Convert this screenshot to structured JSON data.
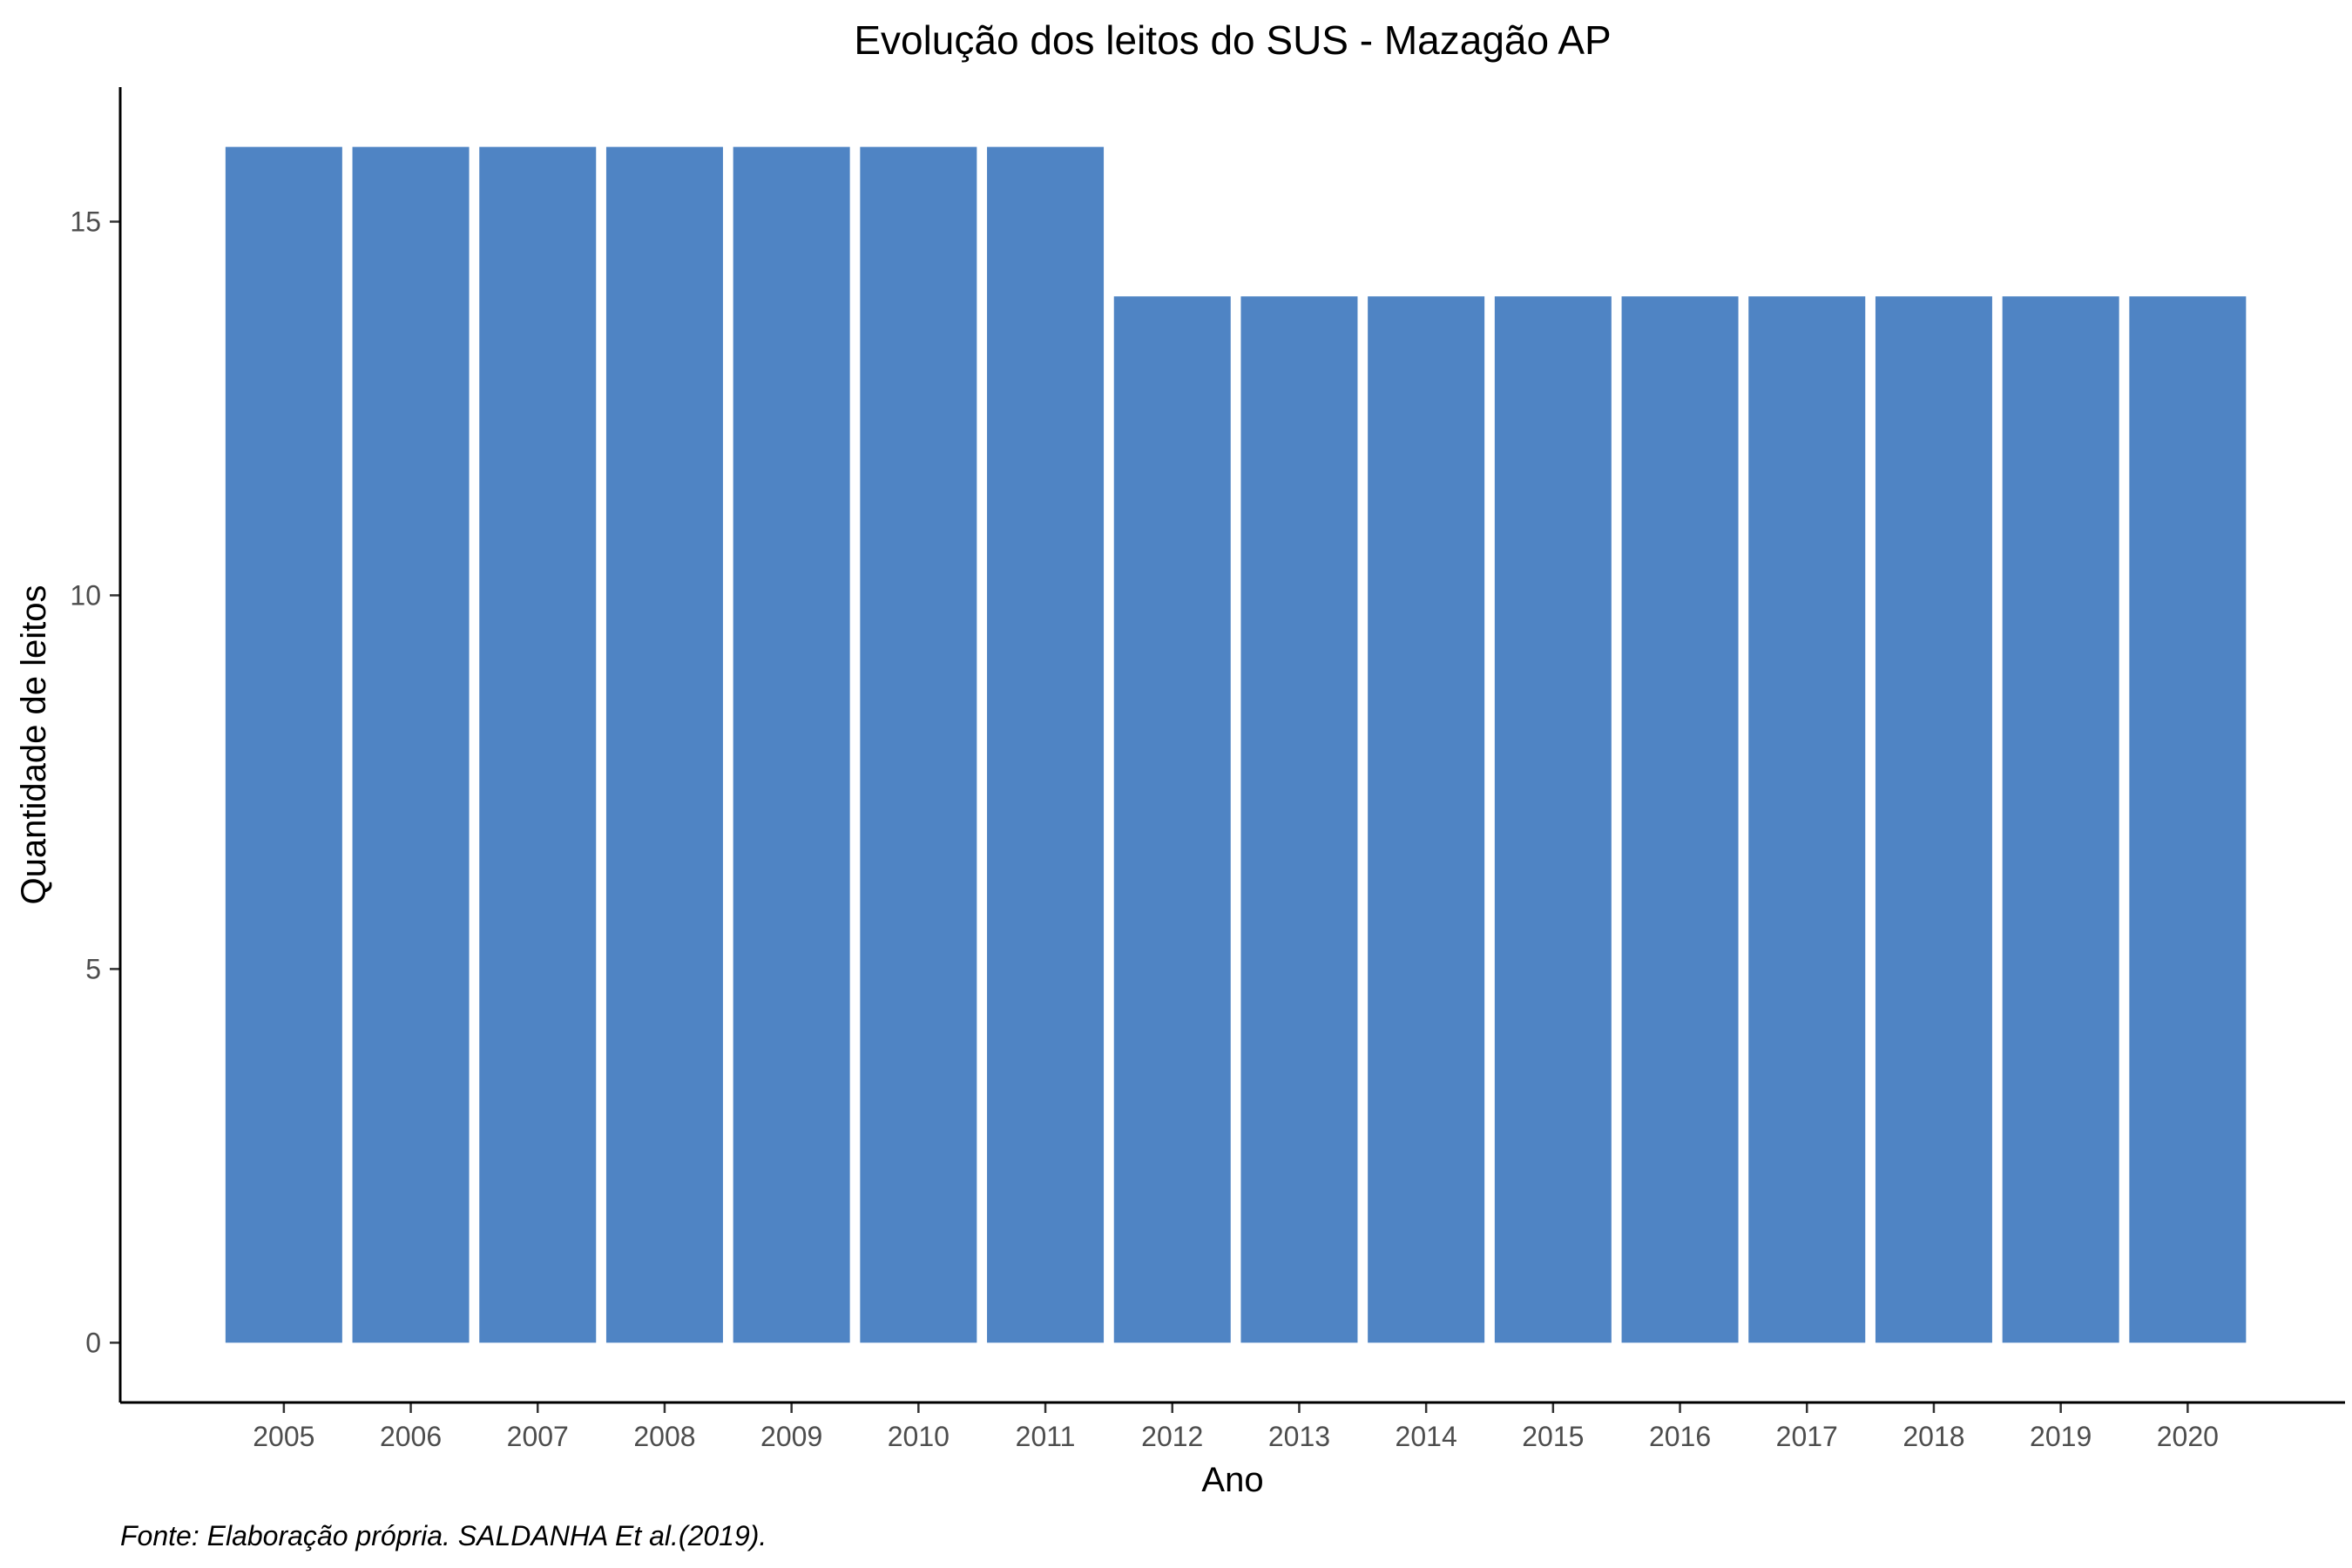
{
  "chart_data": {
    "type": "bar",
    "title": "Evolução dos leitos do SUS -  Mazagão AP",
    "xlabel": "Ano",
    "ylabel": "Quantidade de leitos",
    "caption": "Fonte: Elaboração própria. SALDANHA Et al.(2019).",
    "categories": [
      "2005",
      "2006",
      "2007",
      "2008",
      "2009",
      "2010",
      "2011",
      "2012",
      "2013",
      "2014",
      "2015",
      "2016",
      "2017",
      "2018",
      "2019",
      "2020"
    ],
    "values": [
      16,
      16,
      16,
      16,
      16,
      16,
      16,
      14,
      14,
      14,
      14,
      14,
      14,
      14,
      14,
      14
    ],
    "ylim": [
      -0.8,
      16.8
    ],
    "yticks": [
      0,
      5,
      10,
      15
    ],
    "bar_color": "#4f84c4",
    "grid": false,
    "legend": "none"
  }
}
